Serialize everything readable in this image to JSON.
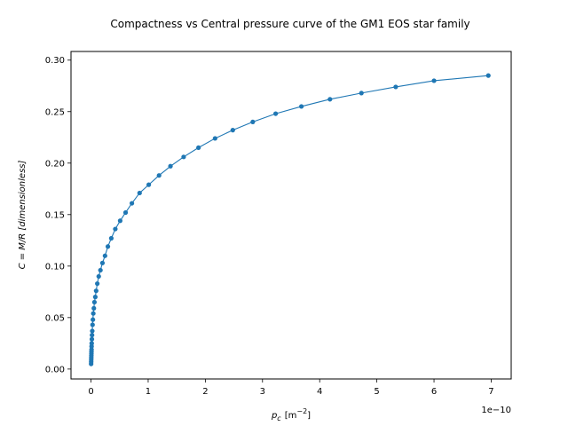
{
  "chart_data": {
    "type": "line",
    "title": "Compactness vs Central pressure curve of the GM1 EOS star family",
    "xlabel_main": "p",
    "xlabel_sub": "c",
    "xlabel_unit": "[m",
    "xlabel_unit_sup": "−2",
    "xlabel_unit_end": "]",
    "ylabel": "C = M/R [dimensionless]",
    "x_offset_text": "1e−10",
    "x_scale_exponent": -10,
    "xlim": [
      -0.35,
      7.35
    ],
    "ylim": [
      -0.0096,
      0.3084
    ],
    "xticks": [
      0,
      1,
      2,
      3,
      4,
      5,
      6,
      7
    ],
    "xtick_labels": [
      "0",
      "1",
      "2",
      "3",
      "4",
      "5",
      "6",
      "7"
    ],
    "yticks": [
      0.0,
      0.05,
      0.1,
      0.15,
      0.2,
      0.25,
      0.3
    ],
    "ytick_labels": [
      "0.00",
      "0.05",
      "0.10",
      "0.15",
      "0.20",
      "0.25",
      "0.30"
    ],
    "grid": false,
    "color": "#1f77b4",
    "marker": "circle",
    "series": [
      {
        "x": [
          0.002,
          0.003,
          0.004,
          0.005,
          0.006,
          0.007,
          0.008,
          0.009,
          0.01,
          0.012,
          0.015,
          0.018,
          0.022,
          0.027,
          0.033,
          0.04,
          0.05,
          0.06,
          0.075,
          0.09,
          0.11,
          0.135,
          0.165,
          0.2,
          0.245,
          0.295,
          0.355,
          0.425,
          0.51,
          0.605,
          0.715,
          0.85,
          1.01,
          1.19,
          1.39,
          1.62,
          1.88,
          2.17,
          2.48,
          2.83,
          3.23,
          3.68,
          4.18,
          4.73,
          5.33,
          6.0,
          6.95
        ],
        "y": [
          0.005,
          0.007,
          0.009,
          0.011,
          0.013,
          0.015,
          0.017,
          0.019,
          0.022,
          0.025,
          0.029,
          0.033,
          0.037,
          0.043,
          0.048,
          0.054,
          0.059,
          0.065,
          0.07,
          0.076,
          0.083,
          0.09,
          0.096,
          0.103,
          0.11,
          0.119,
          0.127,
          0.136,
          0.144,
          0.152,
          0.161,
          0.171,
          0.179,
          0.188,
          0.197,
          0.206,
          0.215,
          0.224,
          0.232,
          0.24,
          0.248,
          0.255,
          0.262,
          0.268,
          0.274,
          0.28,
          0.285
        ]
      }
    ]
  }
}
